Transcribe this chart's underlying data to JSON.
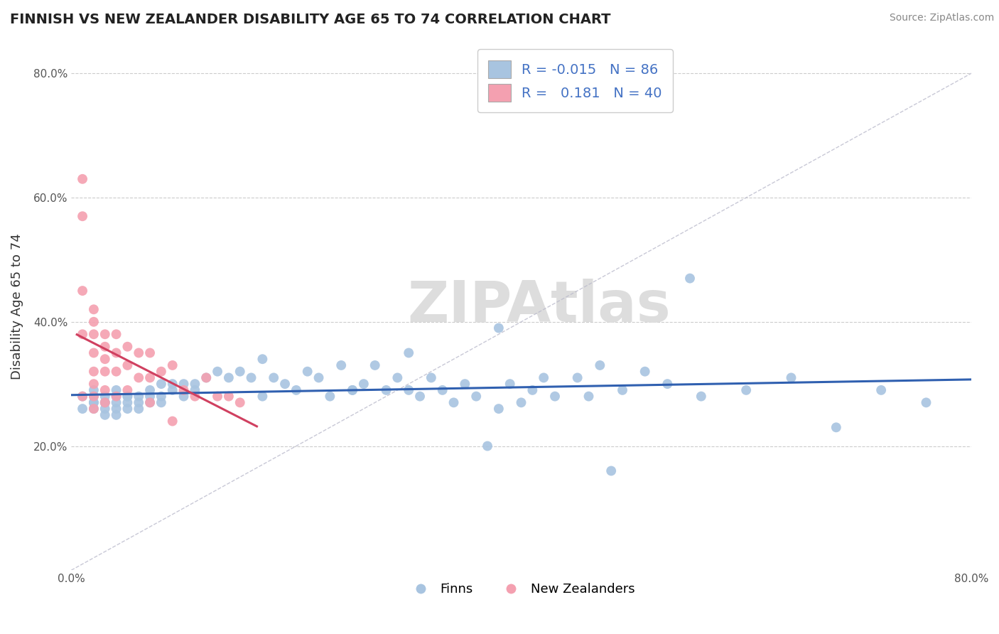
{
  "title": "FINNISH VS NEW ZEALANDER DISABILITY AGE 65 TO 74 CORRELATION CHART",
  "source": "Source: ZipAtlas.com",
  "ylabel": "Disability Age 65 to 74",
  "xlim": [
    0.0,
    0.8
  ],
  "ylim": [
    0.0,
    0.85
  ],
  "legend_R_finn": "-0.015",
  "legend_N_finn": "86",
  "legend_R_nz": "0.181",
  "legend_N_nz": "40",
  "finn_color": "#a8c4e0",
  "nz_color": "#f4a0b0",
  "finn_line_color": "#3060b0",
  "nz_line_color": "#d04060",
  "finn_x": [
    0.01,
    0.01,
    0.02,
    0.02,
    0.02,
    0.02,
    0.02,
    0.03,
    0.03,
    0.03,
    0.03,
    0.03,
    0.04,
    0.04,
    0.04,
    0.04,
    0.04,
    0.05,
    0.05,
    0.05,
    0.05,
    0.06,
    0.06,
    0.06,
    0.07,
    0.07,
    0.07,
    0.08,
    0.08,
    0.08,
    0.09,
    0.09,
    0.1,
    0.1,
    0.11,
    0.11,
    0.12,
    0.13,
    0.14,
    0.15,
    0.16,
    0.17,
    0.18,
    0.19,
    0.2,
    0.21,
    0.22,
    0.23,
    0.24,
    0.25,
    0.26,
    0.27,
    0.28,
    0.29,
    0.3,
    0.31,
    0.32,
    0.33,
    0.34,
    0.35,
    0.36,
    0.37,
    0.38,
    0.39,
    0.4,
    0.41,
    0.42,
    0.43,
    0.45,
    0.46,
    0.47,
    0.49,
    0.51,
    0.53,
    0.56,
    0.6,
    0.64,
    0.68,
    0.72,
    0.76,
    0.48,
    0.55,
    0.38,
    0.3,
    0.25,
    0.17
  ],
  "finn_y": [
    0.28,
    0.26,
    0.27,
    0.28,
    0.29,
    0.27,
    0.26,
    0.28,
    0.27,
    0.26,
    0.25,
    0.27,
    0.28,
    0.27,
    0.26,
    0.25,
    0.29,
    0.28,
    0.27,
    0.26,
    0.28,
    0.27,
    0.28,
    0.26,
    0.27,
    0.29,
    0.28,
    0.27,
    0.3,
    0.28,
    0.29,
    0.3,
    0.28,
    0.3,
    0.3,
    0.29,
    0.31,
    0.32,
    0.31,
    0.32,
    0.31,
    0.34,
    0.31,
    0.3,
    0.29,
    0.32,
    0.31,
    0.28,
    0.33,
    0.29,
    0.3,
    0.33,
    0.29,
    0.31,
    0.29,
    0.28,
    0.31,
    0.29,
    0.27,
    0.3,
    0.28,
    0.2,
    0.26,
    0.3,
    0.27,
    0.29,
    0.31,
    0.28,
    0.31,
    0.28,
    0.33,
    0.29,
    0.32,
    0.3,
    0.28,
    0.29,
    0.31,
    0.23,
    0.29,
    0.27,
    0.16,
    0.47,
    0.39,
    0.35,
    0.29,
    0.28
  ],
  "nz_x": [
    0.01,
    0.01,
    0.01,
    0.01,
    0.01,
    0.02,
    0.02,
    0.02,
    0.02,
    0.02,
    0.02,
    0.02,
    0.02,
    0.03,
    0.03,
    0.03,
    0.03,
    0.03,
    0.03,
    0.04,
    0.04,
    0.04,
    0.04,
    0.05,
    0.05,
    0.05,
    0.06,
    0.06,
    0.07,
    0.07,
    0.08,
    0.09,
    0.1,
    0.11,
    0.12,
    0.13,
    0.14,
    0.15,
    0.09,
    0.07
  ],
  "nz_y": [
    0.63,
    0.57,
    0.45,
    0.38,
    0.28,
    0.42,
    0.4,
    0.38,
    0.35,
    0.32,
    0.3,
    0.28,
    0.26,
    0.38,
    0.36,
    0.34,
    0.32,
    0.29,
    0.27,
    0.38,
    0.35,
    0.32,
    0.28,
    0.36,
    0.33,
    0.29,
    0.35,
    0.31,
    0.35,
    0.31,
    0.32,
    0.33,
    0.29,
    0.28,
    0.31,
    0.28,
    0.28,
    0.27,
    0.24,
    0.27
  ]
}
